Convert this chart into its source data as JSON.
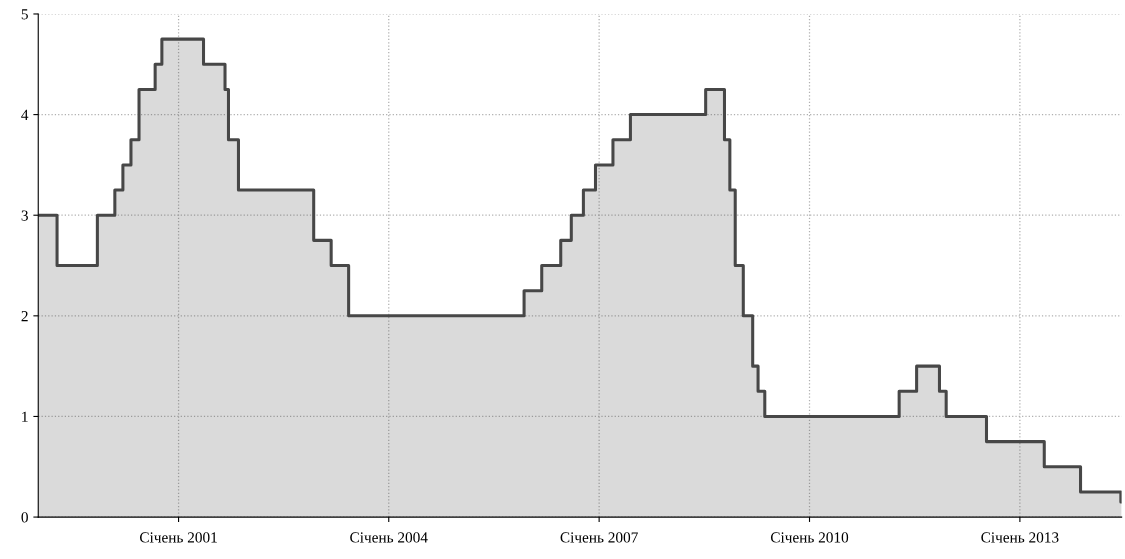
{
  "chart_data": {
    "type": "area",
    "xlim": [
      "1999-01-01",
      "2014-06-15"
    ],
    "ylim": [
      0,
      5
    ],
    "yticks": [
      0,
      1,
      2,
      3,
      4,
      5
    ],
    "xticks": [
      {
        "value": "2001-01-01",
        "label": "Січень 2001"
      },
      {
        "value": "2004-01-01",
        "label": "Січень 2004"
      },
      {
        "value": "2007-01-01",
        "label": "Січень 2007"
      },
      {
        "value": "2010-01-01",
        "label": "Січень 2010"
      },
      {
        "value": "2013-01-01",
        "label": "Січень 2013"
      }
    ],
    "grid": true,
    "line_style": "solid",
    "series": [
      {
        "color": "#474747",
        "x": [
          "1999-01-01",
          "1999-04-09",
          "1999-04-09",
          "1999-11-05",
          "1999-11-05",
          "2000-02-04",
          "2000-02-04",
          "2000-03-17",
          "2000-03-17",
          "2000-04-28",
          "2000-04-28",
          "2000-06-09",
          "2000-06-09",
          "2000-09-01",
          "2000-09-01",
          "2000-10-06",
          "2000-10-06",
          "2001-05-11",
          "2001-05-11",
          "2001-08-31",
          "2001-08-31",
          "2001-09-18",
          "2001-09-18",
          "2001-11-09",
          "2001-11-09",
          "2002-12-06",
          "2002-12-06",
          "2003-03-07",
          "2003-03-07",
          "2003-06-06",
          "2003-06-06",
          "2005-12-06",
          "2005-12-06",
          "2006-03-08",
          "2006-03-08",
          "2006-06-15",
          "2006-06-15",
          "2006-08-09",
          "2006-08-09",
          "2006-10-11",
          "2006-10-11",
          "2006-12-13",
          "2006-12-13",
          "2007-03-14",
          "2007-03-14",
          "2007-06-13",
          "2007-06-13",
          "2008-07-09",
          "2008-07-09",
          "2008-10-15",
          "2008-10-15",
          "2008-11-12",
          "2008-11-12",
          "2008-12-10",
          "2008-12-10",
          "2009-01-21",
          "2009-01-21",
          "2009-03-11",
          "2009-03-11",
          "2009-04-08",
          "2009-04-08",
          "2009-05-13",
          "2009-05-13",
          "2011-04-13",
          "2011-04-13",
          "2011-07-13",
          "2011-07-13",
          "2011-11-09",
          "2011-11-09",
          "2011-12-14",
          "2011-12-14",
          "2012-07-11",
          "2012-07-11",
          "2013-05-08",
          "2013-05-08",
          "2013-11-13",
          "2013-11-13",
          "2014-06-11",
          "2014-06-11",
          "2014-06-15"
        ],
        "values": [
          3.0,
          3.0,
          2.5,
          2.5,
          3.0,
          3.0,
          3.25,
          3.25,
          3.5,
          3.5,
          3.75,
          3.75,
          4.25,
          4.25,
          4.5,
          4.5,
          4.75,
          4.75,
          4.5,
          4.5,
          4.25,
          4.25,
          3.75,
          3.75,
          3.25,
          3.25,
          2.75,
          2.75,
          2.5,
          2.5,
          2.0,
          2.0,
          2.25,
          2.25,
          2.5,
          2.5,
          2.75,
          2.75,
          3.0,
          3.0,
          3.25,
          3.25,
          3.5,
          3.5,
          3.75,
          3.75,
          4.0,
          4.0,
          4.25,
          4.25,
          3.75,
          3.75,
          3.25,
          3.25,
          2.5,
          2.5,
          2.0,
          2.0,
          1.5,
          1.5,
          1.25,
          1.25,
          1.0,
          1.0,
          1.25,
          1.25,
          1.5,
          1.5,
          1.25,
          1.25,
          1.0,
          1.0,
          0.75,
          0.75,
          0.5,
          0.5,
          0.25,
          0.25,
          0.15,
          0.15
        ]
      }
    ]
  }
}
